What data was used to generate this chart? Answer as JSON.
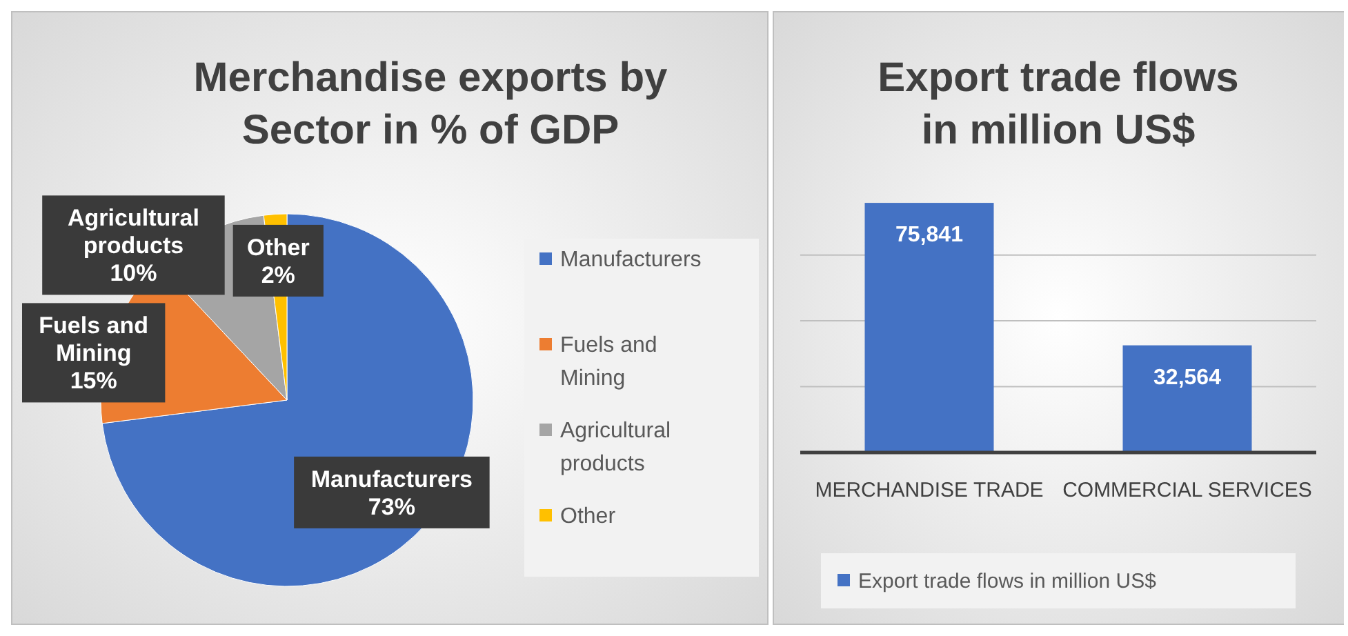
{
  "chart_data": [
    {
      "type": "pie",
      "title": "Merchandise exports by Sector in % of GDP",
      "categories": [
        "Manufacturers",
        "Fuels and Mining",
        "Agricultural products",
        "Other"
      ],
      "values": [
        73,
        15,
        10,
        2
      ],
      "colors": [
        "#4472c4",
        "#ed7d31",
        "#a5a5a5",
        "#ffc000"
      ],
      "value_labels": [
        "73%",
        "15%",
        "10%",
        "2%"
      ],
      "legend": "right"
    },
    {
      "type": "bar",
      "title": "Export trade flows in million US$",
      "categories": [
        "MERCHANDISE TRADE",
        "COMMERCIAL SERVICES"
      ],
      "series": [
        {
          "name": "Export trade flows in million US$",
          "color": "#4472c4",
          "values": [
            75841,
            32564
          ],
          "value_labels": [
            "75,841",
            "32,564"
          ]
        }
      ],
      "tick_labels": "x",
      "grid": "y",
      "legend": "bottom"
    }
  ]
}
